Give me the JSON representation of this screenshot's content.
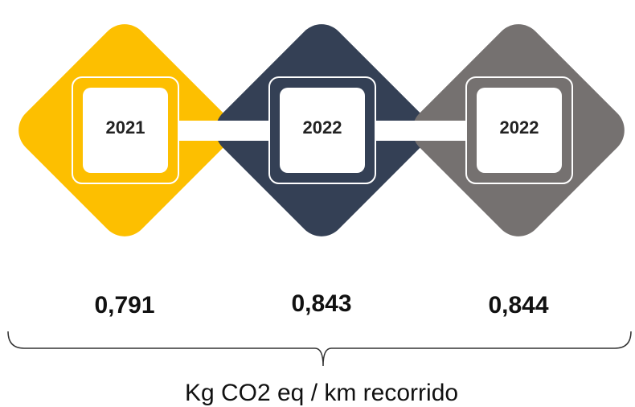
{
  "items": [
    {
      "year": "2021",
      "value": "0,791"
    },
    {
      "year": "2022",
      "value": "0,843"
    },
    {
      "year": "2022",
      "value": "0,844"
    }
  ],
  "caption": "Kg CO2 eq / km recorrido"
}
